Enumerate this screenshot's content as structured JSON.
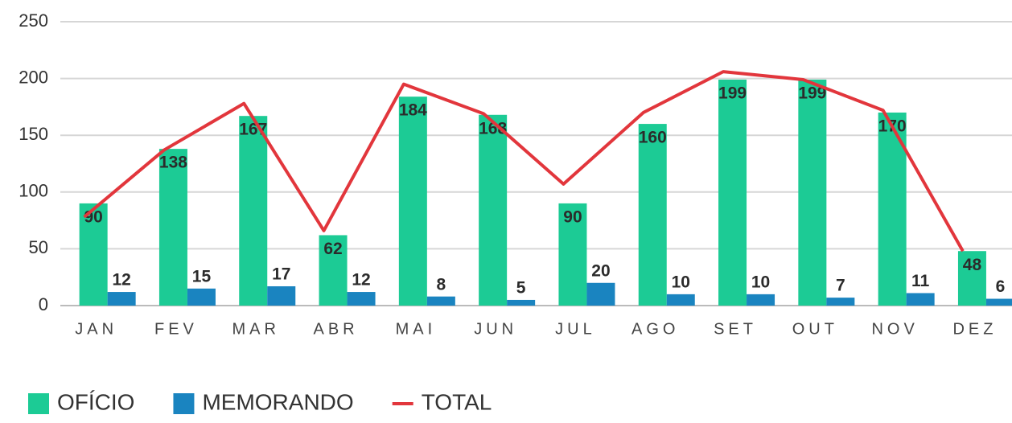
{
  "chart_data": {
    "type": "bar",
    "categories": [
      "JAN",
      "FEV",
      "MAR",
      "ABR",
      "MAI",
      "JUN",
      "JUL",
      "AGO",
      "SET",
      "OUT",
      "NOV",
      "DEZ"
    ],
    "series": [
      {
        "name": "OFÍCIO",
        "type": "bar",
        "color": "#1ccb95",
        "values": [
          90,
          138,
          167,
          62,
          184,
          168,
          90,
          160,
          199,
          199,
          170,
          48
        ]
      },
      {
        "name": "MEMORANDO",
        "type": "bar",
        "color": "#1a84c0",
        "values": [
          12,
          15,
          17,
          12,
          8,
          5,
          20,
          10,
          10,
          7,
          11,
          6
        ]
      },
      {
        "name": "TOTAL",
        "type": "line",
        "color": "#e2363c",
        "values": [
          78,
          137,
          178,
          66,
          195,
          169,
          107,
          170,
          206,
          199,
          172,
          48
        ]
      }
    ],
    "ylim": [
      0,
      250
    ],
    "yticks": [
      0,
      50,
      100,
      150,
      200,
      250
    ],
    "grid": true,
    "legend": "bottom-left"
  }
}
